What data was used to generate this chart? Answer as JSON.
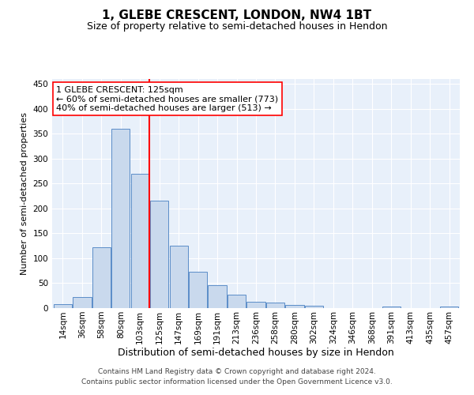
{
  "title": "1, GLEBE CRESCENT, LONDON, NW4 1BT",
  "subtitle": "Size of property relative to semi-detached houses in Hendon",
  "xlabel": "Distribution of semi-detached houses by size in Hendon",
  "ylabel": "Number of semi-detached properties",
  "footer_line1": "Contains HM Land Registry data © Crown copyright and database right 2024.",
  "footer_line2": "Contains public sector information licensed under the Open Government Licence v3.0.",
  "annotation_line1": "1 GLEBE CRESCENT: 125sqm",
  "annotation_line2": "← 60% of semi-detached houses are smaller (773)",
  "annotation_line3": "40% of semi-detached houses are larger (513) →",
  "bar_labels": [
    "14sqm",
    "36sqm",
    "58sqm",
    "80sqm",
    "103sqm",
    "125sqm",
    "147sqm",
    "169sqm",
    "191sqm",
    "213sqm",
    "236sqm",
    "258sqm",
    "280sqm",
    "302sqm",
    "324sqm",
    "346sqm",
    "368sqm",
    "391sqm",
    "413sqm",
    "435sqm",
    "457sqm"
  ],
  "bar_values": [
    8,
    22,
    122,
    360,
    270,
    215,
    125,
    73,
    46,
    27,
    13,
    11,
    7,
    4,
    0,
    0,
    0,
    3,
    0,
    0,
    3
  ],
  "bar_color": "#c9d9ed",
  "bar_edgecolor": "#5b8dc8",
  "red_line_x": 4.5,
  "background_color": "#e8f0fa",
  "ylim": [
    0,
    460
  ],
  "yticks": [
    0,
    50,
    100,
    150,
    200,
    250,
    300,
    350,
    400,
    450
  ],
  "title_fontsize": 11,
  "subtitle_fontsize": 9,
  "xlabel_fontsize": 9,
  "ylabel_fontsize": 8,
  "tick_fontsize": 7.5,
  "annotation_fontsize": 8,
  "footer_fontsize": 6.5
}
